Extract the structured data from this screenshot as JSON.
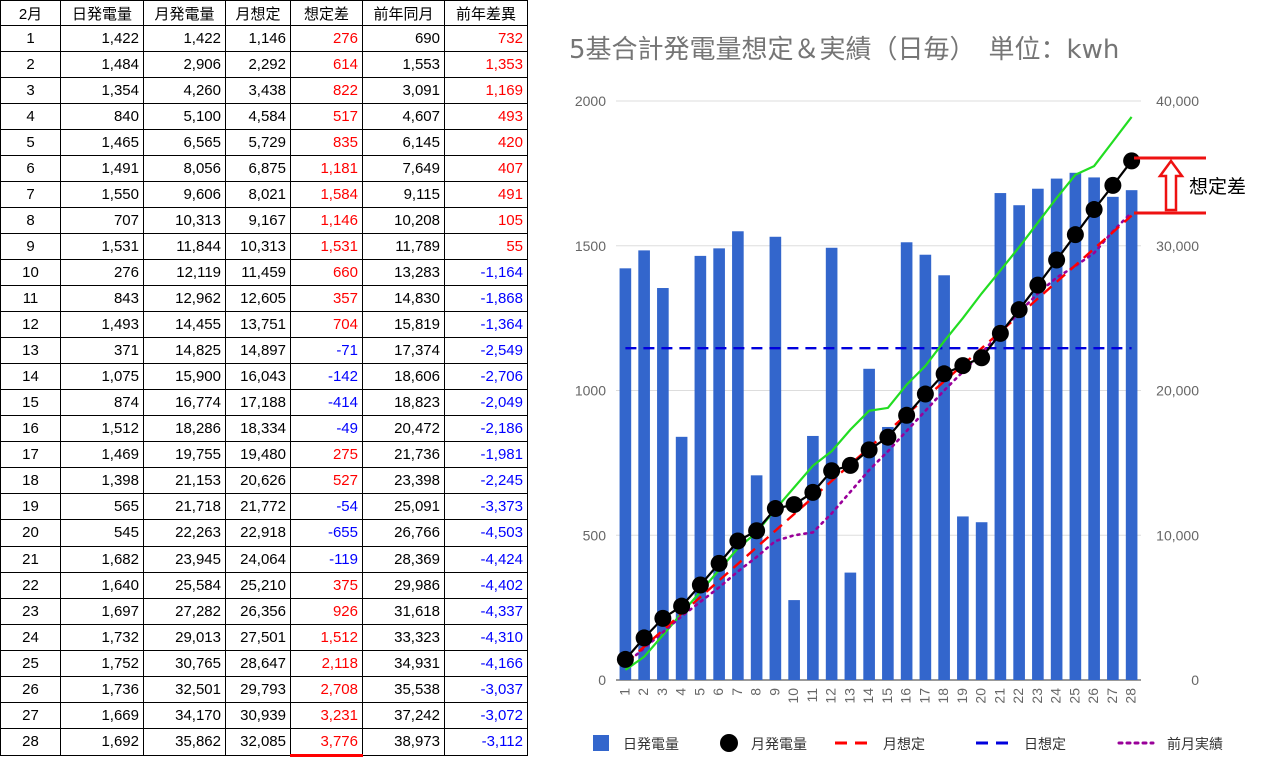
{
  "table": {
    "headers": [
      "2月",
      "日発電量",
      "月発電量",
      "月想定",
      "想定差",
      "前年同月",
      "前年差異"
    ],
    "rows": [
      [
        "1",
        "1,422",
        "1,422",
        "1,146",
        "276",
        "690",
        "732"
      ],
      [
        "2",
        "1,484",
        "2,906",
        "2,292",
        "614",
        "1,553",
        "1,353"
      ],
      [
        "3",
        "1,354",
        "4,260",
        "3,438",
        "822",
        "3,091",
        "1,169"
      ],
      [
        "4",
        "840",
        "5,100",
        "4,584",
        "517",
        "4,607",
        "493"
      ],
      [
        "5",
        "1,465",
        "6,565",
        "5,729",
        "835",
        "6,145",
        "420"
      ],
      [
        "6",
        "1,491",
        "8,056",
        "6,875",
        "1,181",
        "7,649",
        "407"
      ],
      [
        "7",
        "1,550",
        "9,606",
        "8,021",
        "1,584",
        "9,115",
        "491"
      ],
      [
        "8",
        "707",
        "10,313",
        "9,167",
        "1,146",
        "10,208",
        "105"
      ],
      [
        "9",
        "1,531",
        "11,844",
        "10,313",
        "1,531",
        "11,789",
        "55"
      ],
      [
        "10",
        "276",
        "12,119",
        "11,459",
        "660",
        "13,283",
        "-1,164"
      ],
      [
        "11",
        "843",
        "12,962",
        "12,605",
        "357",
        "14,830",
        "-1,868"
      ],
      [
        "12",
        "1,493",
        "14,455",
        "13,751",
        "704",
        "15,819",
        "-1,364"
      ],
      [
        "13",
        "371",
        "14,825",
        "14,897",
        "-71",
        "17,374",
        "-2,549"
      ],
      [
        "14",
        "1,075",
        "15,900",
        "16,043",
        "-142",
        "18,606",
        "-2,706"
      ],
      [
        "15",
        "874",
        "16,774",
        "17,188",
        "-414",
        "18,823",
        "-2,049"
      ],
      [
        "16",
        "1,512",
        "18,286",
        "18,334",
        "-49",
        "20,472",
        "-2,186"
      ],
      [
        "17",
        "1,469",
        "19,755",
        "19,480",
        "275",
        "21,736",
        "-1,981"
      ],
      [
        "18",
        "1,398",
        "21,153",
        "20,626",
        "527",
        "23,398",
        "-2,245"
      ],
      [
        "19",
        "565",
        "21,718",
        "21,772",
        "-54",
        "25,091",
        "-3,373"
      ],
      [
        "20",
        "545",
        "22,263",
        "22,918",
        "-655",
        "26,766",
        "-4,503"
      ],
      [
        "21",
        "1,682",
        "23,945",
        "24,064",
        "-119",
        "28,369",
        "-4,424"
      ],
      [
        "22",
        "1,640",
        "25,584",
        "25,210",
        "375",
        "29,986",
        "-4,402"
      ],
      [
        "23",
        "1,697",
        "27,282",
        "26,356",
        "926",
        "31,618",
        "-4,337"
      ],
      [
        "24",
        "1,732",
        "29,013",
        "27,501",
        "1,512",
        "33,323",
        "-4,310"
      ],
      [
        "25",
        "1,752",
        "30,765",
        "28,647",
        "2,118",
        "34,931",
        "-4,166"
      ],
      [
        "26",
        "1,736",
        "32,501",
        "29,793",
        "2,708",
        "35,538",
        "-3,037"
      ],
      [
        "27",
        "1,669",
        "34,170",
        "30,939",
        "3,231",
        "37,242",
        "-3,072"
      ],
      [
        "28",
        "1,692",
        "35,862",
        "32,085",
        "3,776",
        "38,973",
        "-3,112"
      ]
    ]
  },
  "chart_data": {
    "type": "bar",
    "title": "5基合計発電量想定＆実績（日毎）　単位：kwh",
    "categories": [
      "1",
      "2",
      "3",
      "4",
      "5",
      "6",
      "7",
      "8",
      "9",
      "10",
      "11",
      "12",
      "13",
      "14",
      "15",
      "16",
      "17",
      "18",
      "19",
      "20",
      "21",
      "22",
      "23",
      "24",
      "25",
      "26",
      "27",
      "28"
    ],
    "y_left": {
      "ylim": [
        0,
        2000
      ],
      "ticks": [
        "0",
        "500",
        "1000",
        "1500",
        "2000"
      ]
    },
    "y_right": {
      "ylim": [
        0,
        40000
      ],
      "ticks": [
        "0",
        "10,000",
        "20,000",
        "30,000",
        "40,000"
      ]
    },
    "series": [
      {
        "name": "日発電量",
        "kind": "bar",
        "axis": "left",
        "color": "#3366cc",
        "values": [
          1422,
          1484,
          1354,
          840,
          1465,
          1491,
          1550,
          707,
          1531,
          276,
          843,
          1493,
          371,
          1075,
          874,
          1512,
          1469,
          1398,
          565,
          545,
          1682,
          1640,
          1697,
          1732,
          1752,
          1736,
          1669,
          1692
        ]
      },
      {
        "name": "月発電量",
        "kind": "line-markers",
        "axis": "right",
        "color": "#000000",
        "values": [
          1422,
          2906,
          4260,
          5100,
          6565,
          8056,
          9606,
          10313,
          11844,
          12119,
          12962,
          14455,
          14825,
          15900,
          16774,
          18286,
          19755,
          21153,
          21718,
          22263,
          23945,
          25584,
          27282,
          29013,
          30765,
          32501,
          34170,
          35862
        ]
      },
      {
        "name": "月想定",
        "kind": "dashed",
        "axis": "right",
        "color": "#ff0000",
        "values": [
          1146,
          2292,
          3438,
          4584,
          5729,
          6875,
          8021,
          9167,
          10313,
          11459,
          12605,
          13751,
          14897,
          16043,
          17188,
          18334,
          19480,
          20626,
          21772,
          22918,
          24064,
          25210,
          26356,
          27501,
          28647,
          29793,
          30939,
          32085
        ]
      },
      {
        "name": "日想定",
        "kind": "dashed",
        "axis": "left",
        "color": "#0000dd",
        "values": [
          1146,
          1146,
          1146,
          1146,
          1146,
          1146,
          1146,
          1146,
          1146,
          1146,
          1146,
          1146,
          1146,
          1146,
          1146,
          1146,
          1146,
          1146,
          1146,
          1146,
          1146,
          1146,
          1146,
          1146,
          1146,
          1146,
          1146,
          1146
        ]
      },
      {
        "name": "前月実績",
        "kind": "dotted",
        "axis": "right",
        "color": "#990099",
        "values": [
          1100,
          2200,
          3300,
          4400,
          5400,
          6400,
          7500,
          8500,
          9600,
          10000,
          10200,
          11500,
          13000,
          14500,
          15800,
          17200,
          18600,
          20000,
          21300,
          22600,
          24000,
          25400,
          26700,
          27800,
          28600,
          29500,
          31000,
          32300
        ]
      },
      {
        "name": "",
        "kind": "line",
        "axis": "right",
        "color": "#22dd22",
        "values": [
          700,
          1600,
          3100,
          4600,
          6100,
          7600,
          9100,
          10200,
          11800,
          13300,
          14800,
          15800,
          17300,
          18600,
          18800,
          20400,
          21700,
          23400,
          25000,
          26700,
          28300,
          29900,
          31600,
          33300,
          34900,
          35500,
          37200,
          38900
        ]
      }
    ],
    "annotation": "想定差",
    "legend": "bottom"
  }
}
